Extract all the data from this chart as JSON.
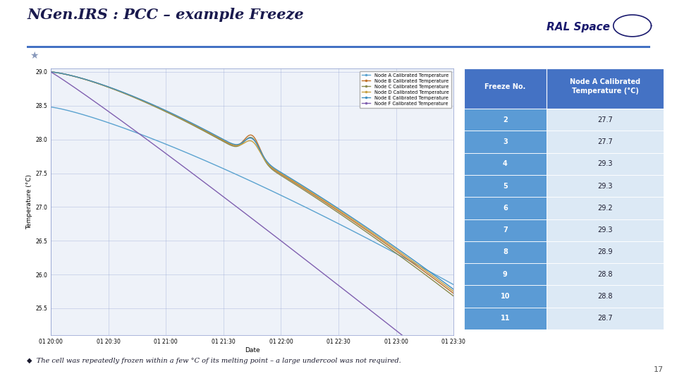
{
  "title": "NGen.IRS : PCC – example Freeze",
  "background_color": "#ffffff",
  "header_line_color": "#4472c4",
  "table": {
    "col1_header": "Freeze No.",
    "col2_header": "Node A Calibrated\nTemperature (°C)",
    "header_bg": "#4472c4",
    "header_text_color": "#ffffff",
    "row_bg_dark": "#5b9bd5",
    "row_bg_light": "#dce9f5",
    "rows": [
      {
        "freeze": "2",
        "temp": "27.7"
      },
      {
        "freeze": "3",
        "temp": "27.7"
      },
      {
        "freeze": "4",
        "temp": "29.3"
      },
      {
        "freeze": "5",
        "temp": "29.3"
      },
      {
        "freeze": "6",
        "temp": "29.2"
      },
      {
        "freeze": "7",
        "temp": "29.3"
      },
      {
        "freeze": "8",
        "temp": "28.9"
      },
      {
        "freeze": "9",
        "temp": "28.8"
      },
      {
        "freeze": "10",
        "temp": "28.8"
      },
      {
        "freeze": "11",
        "temp": "28.7"
      }
    ]
  },
  "chart": {
    "ylabel": "Temperature (°C)",
    "xlabel": "Date",
    "ylim_min": 25.1,
    "ylim_max": 29.05,
    "yticks": [
      25.5,
      26.0,
      26.5,
      27.0,
      27.5,
      28.0,
      28.5,
      29.0
    ],
    "bg_color": "#eef2f9",
    "grid_color": "#8899cc",
    "grid_alpha": 0.55,
    "legend_entries": [
      "Node A Calibrated Temperature",
      "Node B Calibrated Temperature",
      "Node C Calibrated Temperature",
      "Node D Calibrated Temperature",
      "Node E Calibrated Temperature",
      "Node F Calibrated Temperature"
    ],
    "line_colors": [
      "#5b9bd5",
      "#c0392b",
      "#7f8c8d",
      "#d4a017",
      "#5dade2",
      "#9b59b6"
    ],
    "xtick_labels": [
      "01 20:00",
      "01 20:30",
      "01 21:00",
      "01 21:30",
      "01 22:00",
      "01 22:30",
      "01 23:00",
      "01 23:30"
    ]
  },
  "footer_text": "◆  The cell was repeatedly frozen within a few °C of its melting point – a large undercool was not required.",
  "page_number": "17"
}
